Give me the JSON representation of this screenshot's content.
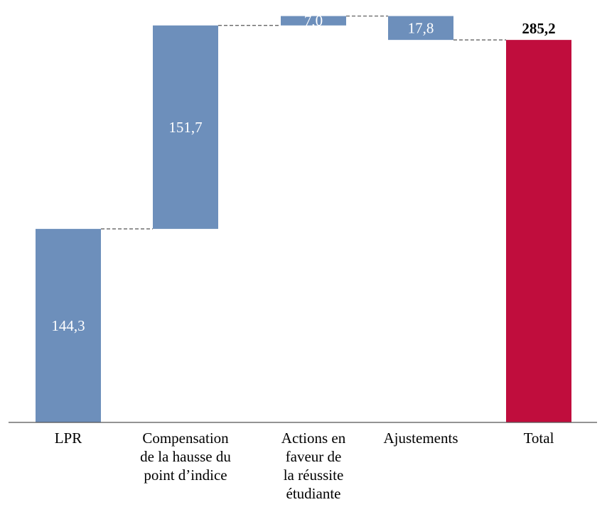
{
  "chart_data": {
    "type": "bar",
    "subtype": "waterfall",
    "categories": [
      "LPR",
      "Compensation de la hausse du point d’indice",
      "Actions en faveur de la réussite étudiante",
      "Ajustements",
      "Total"
    ],
    "category_lines": [
      [
        "LPR"
      ],
      [
        "Compensation",
        "de la hausse du",
        "point d’indice"
      ],
      [
        "Actions en",
        "faveur de",
        "la réussite",
        "étudiante"
      ],
      [
        "Ajustements"
      ],
      [
        "Total"
      ]
    ],
    "values": [
      144.3,
      151.7,
      7.0,
      -17.8,
      285.2
    ],
    "data_labels": [
      "144,3",
      "151,7",
      "7,0",
      "17,8",
      "285,2"
    ],
    "bar_kinds": [
      "increase",
      "increase",
      "increase",
      "decrease",
      "total"
    ],
    "ylim": [
      0,
      310
    ],
    "connectors": "dashed",
    "colors": {
      "step": "#6d8fbb",
      "total": "#c00d3d",
      "axis": "#555555",
      "connector": "#555555"
    }
  }
}
